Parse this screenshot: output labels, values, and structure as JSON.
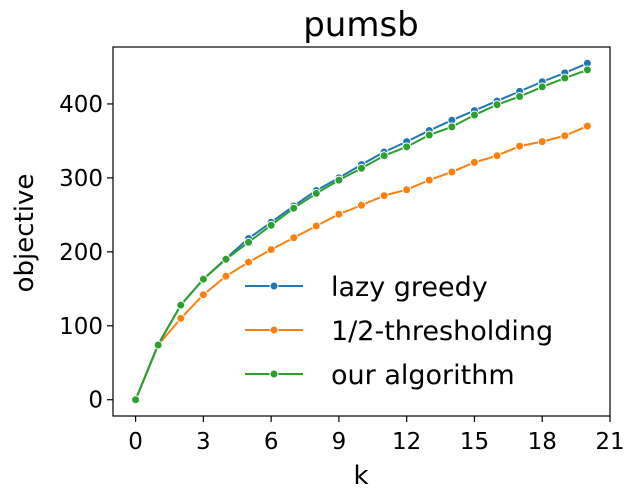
{
  "chart_data": {
    "type": "line",
    "title": "pumsb",
    "xlabel": "k",
    "ylabel": "objective",
    "xlim": [
      -1,
      21
    ],
    "ylim": [
      -22,
      477
    ],
    "xticks": [
      0,
      3,
      6,
      9,
      12,
      15,
      18,
      21
    ],
    "yticks": [
      0,
      100,
      200,
      300,
      400
    ],
    "grid": false,
    "legend_position": "lower-right",
    "x": [
      0,
      1,
      2,
      3,
      4,
      5,
      6,
      7,
      8,
      9,
      10,
      11,
      12,
      13,
      14,
      15,
      16,
      17,
      18,
      19,
      20
    ],
    "series": [
      {
        "name": "lazy greedy",
        "color": "#1f77b4",
        "values": [
          0,
          75,
          128,
          163,
          191,
          218,
          240,
          262,
          283,
          300,
          318,
          335,
          349,
          364,
          378,
          391,
          404,
          417,
          430,
          442,
          455
        ]
      },
      {
        "name": "1/2-thresholding",
        "color": "#ff7f0e",
        "values": [
          0,
          74,
          110,
          142,
          167,
          186,
          203,
          219,
          235,
          251,
          263,
          276,
          284,
          297,
          308,
          321,
          330,
          343,
          349,
          357,
          370
        ]
      },
      {
        "name": "our algorithm",
        "color": "#2ca02c",
        "values": [
          0,
          74,
          128,
          163,
          190,
          213,
          236,
          259,
          279,
          297,
          313,
          330,
          342,
          358,
          369,
          385,
          399,
          410,
          423,
          435,
          446
        ]
      }
    ]
  }
}
